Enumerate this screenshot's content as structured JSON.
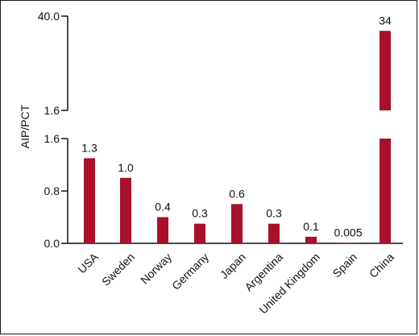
{
  "chart_data": {
    "type": "bar",
    "ylabel": "AIP/PCT",
    "xlabel": "",
    "title": "",
    "categories": [
      "USA",
      "Sweden",
      "Norway",
      "Germany",
      "Japan",
      "Argentina",
      "United Kingdom",
      "Spain",
      "China"
    ],
    "values": [
      1.3,
      1.0,
      0.4,
      0.3,
      0.6,
      0.3,
      0.1,
      0.005,
      34
    ],
    "data_labels": [
      "1.3",
      "1.0",
      "0.4",
      "0.3",
      "0.6",
      "0.3",
      "0.1",
      "0.005",
      "34"
    ],
    "y_axis_broken": true,
    "lower_segment": {
      "ylim": [
        0,
        1.6
      ],
      "ticks": [
        "0.0",
        "0.8",
        "1.6"
      ],
      "tick_values": [
        0,
        0.8,
        1.6
      ]
    },
    "upper_segment": {
      "ylim": [
        1.6,
        40.0
      ],
      "ticks": [
        "1.6",
        "40.0"
      ],
      "tick_values": [
        1.6,
        40.0
      ]
    },
    "bar_color": "#a8102c",
    "grid": false,
    "legend": "none"
  }
}
